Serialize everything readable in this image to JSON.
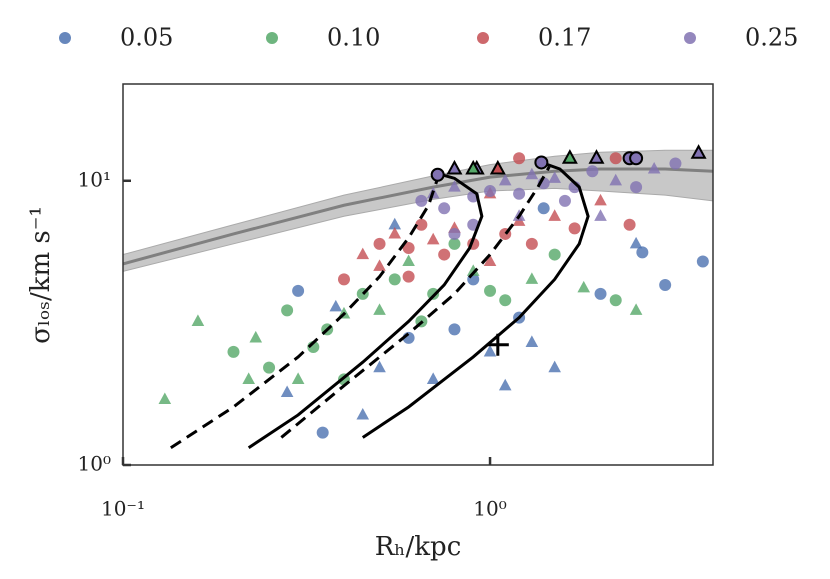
{
  "chart_data": {
    "type": "scatter",
    "xlabel": "Rₕ/kpc",
    "ylabel": "σₗₒₛ/km s⁻¹",
    "xscale": "log",
    "yscale": "log",
    "xlim": [
      0.1,
      4.05
    ],
    "ylim": [
      1,
      21.9
    ],
    "xticks": [
      {
        "value": 0.1,
        "label": "10⁻¹"
      },
      {
        "value": 1,
        "label": "10⁰"
      }
    ],
    "yticks": [
      {
        "value": 1,
        "label": "10⁰"
      },
      {
        "value": 10,
        "label": "10¹"
      }
    ],
    "series": [
      {
        "name": "0.05",
        "color": "#4c72b0",
        "x": [
          0.3,
          0.38,
          0.5,
          0.6,
          0.7,
          0.8,
          1.0,
          1.2,
          1.3,
          1.5,
          2.0,
          2.5,
          3.0,
          3.8,
          0.35,
          0.28,
          0.45,
          0.9,
          1.1,
          2.6,
          1.4,
          0.55
        ],
        "values": [
          4.1,
          3.6,
          2.2,
          2.8,
          2.0,
          3.0,
          2.5,
          3.3,
          2.7,
          2.2,
          4.0,
          6.0,
          4.3,
          5.2,
          1.3,
          1.8,
          1.5,
          4.5,
          1.9,
          5.6,
          8.0,
          7.0
        ],
        "markers": [
          "o",
          "^",
          "^",
          "o",
          "^",
          "o",
          "^",
          "o",
          "^",
          "^",
          "o",
          "^",
          "o",
          "o",
          "o",
          "^",
          "^",
          "o",
          "^",
          "o",
          "o",
          "^"
        ]
      },
      {
        "name": "0.10",
        "color": "#55a868",
        "x": [
          0.13,
          0.16,
          0.2,
          0.23,
          0.25,
          0.28,
          0.3,
          0.33,
          0.36,
          0.4,
          0.45,
          0.5,
          0.55,
          0.6,
          0.7,
          0.8,
          0.9,
          1.1,
          1.3,
          1.5,
          1.8,
          2.2,
          2.5,
          0.4,
          0.22,
          0.65,
          1.0
        ],
        "values": [
          1.7,
          3.2,
          2.5,
          2.8,
          2.2,
          3.5,
          2.0,
          2.6,
          3.0,
          3.4,
          4.0,
          3.5,
          4.5,
          5.2,
          4.0,
          6.0,
          4.8,
          3.8,
          4.5,
          5.5,
          4.2,
          3.8,
          3.5,
          2.0,
          2.0,
          3.2,
          4.1
        ],
        "markers": [
          "^",
          "^",
          "o",
          "^",
          "o",
          "o",
          "^",
          "o",
          "o",
          "^",
          "o",
          "^",
          "o",
          "^",
          "o",
          "o",
          "^",
          "o",
          "^",
          "o",
          "^",
          "o",
          "^",
          "o",
          "^",
          "o",
          "o"
        ]
      },
      {
        "name": "0.17",
        "color": "#c44e52",
        "x": [
          0.4,
          0.45,
          0.5,
          0.55,
          0.6,
          0.65,
          0.7,
          0.75,
          0.8,
          0.9,
          1.0,
          1.1,
          1.2,
          1.3,
          1.5,
          1.7,
          2.0,
          2.4,
          0.5,
          0.6,
          1.0,
          1.2,
          2.2
        ],
        "values": [
          4.5,
          5.5,
          6.0,
          6.5,
          5.8,
          7.0,
          6.2,
          5.5,
          6.8,
          6.0,
          5.2,
          6.5,
          7.2,
          6.0,
          7.5,
          6.8,
          8.5,
          7.0,
          5.0,
          4.6,
          9.0,
          12.0,
          12.0
        ],
        "markers": [
          "o",
          "^",
          "o",
          "^",
          "o",
          "o",
          "^",
          "o",
          "^",
          "o",
          "^",
          "o",
          "^",
          "o",
          "^",
          "o",
          "^",
          "o",
          "^",
          "o",
          "^",
          "o",
          "o"
        ]
      },
      {
        "name": "0.25",
        "color": "#8172b2",
        "x": [
          0.65,
          0.7,
          0.75,
          0.8,
          0.9,
          1.0,
          1.1,
          1.2,
          1.3,
          1.4,
          1.5,
          1.7,
          1.9,
          2.2,
          2.5,
          2.8,
          3.2,
          1.2,
          0.9,
          1.6,
          2.0,
          0.8
        ],
        "values": [
          8.5,
          9.0,
          8.0,
          9.5,
          8.8,
          9.2,
          10.0,
          9.0,
          10.5,
          9.8,
          10.2,
          9.5,
          10.8,
          10.0,
          9.5,
          11.0,
          11.5,
          7.5,
          7.0,
          8.5,
          7.5,
          6.5
        ],
        "markers": [
          "o",
          "^",
          "o",
          "^",
          "o",
          "o",
          "^",
          "o",
          "^",
          "o",
          "^",
          "o",
          "o",
          "^",
          "o",
          "^",
          "o",
          "^",
          "o",
          "o",
          "^",
          "o"
        ]
      }
    ],
    "band": {
      "color": "#c8c8c8",
      "line_color": "#808080",
      "x": [
        0.1,
        0.2,
        0.4,
        0.7,
        1,
        1.5,
        2,
        3,
        4.05
      ],
      "values": [
        5.1,
        6.5,
        8.2,
        9.5,
        10.3,
        10.8,
        11.0,
        11.0,
        10.8
      ],
      "lower": [
        4.8,
        6.0,
        7.5,
        8.6,
        9.2,
        9.4,
        9.2,
        8.9,
        8.5
      ],
      "upper": [
        5.5,
        7.0,
        8.9,
        10.4,
        11.4,
        12.2,
        12.6,
        12.8,
        12.8
      ]
    },
    "lines": [
      {
        "style": "dashed",
        "x": [
          0.135,
          0.2,
          0.3,
          0.4,
          0.5,
          0.6,
          0.68,
          0.72
        ],
        "values": [
          1.15,
          1.6,
          2.4,
          3.4,
          4.6,
          6.3,
          8.2,
          10.2
        ]
      },
      {
        "style": "solid",
        "x": [
          0.22,
          0.3,
          0.45,
          0.6,
          0.75,
          0.88,
          0.95,
          0.92,
          0.8,
          0.72
        ],
        "values": [
          1.15,
          1.5,
          2.3,
          3.2,
          4.3,
          5.8,
          7.5,
          9.0,
          10.2,
          10.6
        ]
      },
      {
        "style": "dashed",
        "x": [
          0.27,
          0.4,
          0.6,
          0.8,
          1.0,
          1.2,
          1.35,
          1.45
        ],
        "values": [
          1.25,
          1.9,
          2.9,
          4.0,
          5.5,
          7.5,
          9.5,
          11.2
        ]
      },
      {
        "style": "solid",
        "x": [
          0.45,
          0.6,
          0.9,
          1.2,
          1.5,
          1.75,
          1.85,
          1.75,
          1.55,
          1.38
        ],
        "values": [
          1.25,
          1.6,
          2.4,
          3.3,
          4.5,
          6.0,
          7.5,
          9.5,
          11.0,
          11.6
        ]
      }
    ],
    "cross": {
      "x": 1.05,
      "value": 2.65
    },
    "highlights": {
      "x": [
        0.72,
        1.38,
        2.4,
        2.5,
        0.8,
        0.92,
        0.9,
        1.05,
        1.65,
        1.95,
        3.7
      ],
      "values": [
        10.5,
        11.6,
        12.0,
        12.0,
        11.0,
        11.0,
        11.0,
        11.0,
        12.0,
        12.0,
        12.5
      ],
      "markers": [
        "o",
        "o",
        "o",
        "o",
        "^",
        "^",
        "^",
        "^",
        "^",
        "^",
        "^"
      ],
      "colors": [
        "#8172b2",
        "#8172b2",
        "#8172b2",
        "#8172b2",
        "#8172b2",
        "#8172b2",
        "#55a868",
        "#c44e52",
        "#55a868",
        "#8172b2",
        "#8172b2"
      ]
    }
  }
}
